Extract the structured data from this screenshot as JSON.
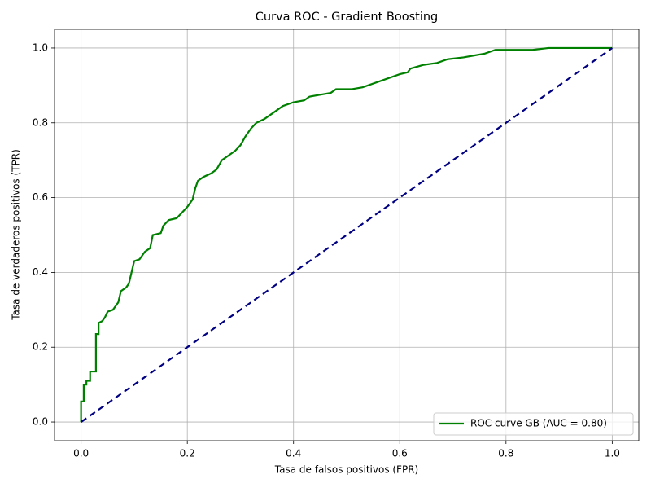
{
  "chart_data": {
    "type": "line",
    "title": "Curva ROC - Gradient Boosting",
    "x_label": "Tasa de falsos positivos (FPR)",
    "y_label": "Tasa de verdaderos positivos (TPR)",
    "xlim": [
      -0.05,
      1.05
    ],
    "ylim": [
      -0.05,
      1.05
    ],
    "xticks": [
      {
        "value": 0,
        "label": "0.0"
      },
      0.2,
      0.4,
      0.6,
      0.8,
      {
        "value": 1,
        "label": "1.0"
      }
    ],
    "yticks": [
      {
        "value": 0,
        "label": "0.0"
      },
      0.2,
      0.4,
      0.6,
      0.8,
      {
        "value": 1,
        "label": "1.0"
      }
    ],
    "grid": true,
    "legend": "lower right",
    "series": [
      {
        "name": "ROC curve GB (AUC = 0.80)",
        "color": "#008000",
        "x": [
          0,
          0,
          0.005,
          0.005,
          0.01,
          0.01,
          0.017,
          0.017,
          0.028,
          0.028,
          0.033,
          0.033,
          0.04,
          0.045,
          0.05,
          0.06,
          0.065,
          0.07,
          0.075,
          0.085,
          0.09,
          0.095,
          0.1,
          0.11,
          0.12,
          0.13,
          0.135,
          0.15,
          0.155,
          0.165,
          0.18,
          0.19,
          0.2,
          0.21,
          0.215,
          0.22,
          0.23,
          0.245,
          0.255,
          0.265,
          0.275,
          0.29,
          0.3,
          0.31,
          0.32,
          0.33,
          0.345,
          0.36,
          0.37,
          0.38,
          0.4,
          0.42,
          0.43,
          0.45,
          0.47,
          0.48,
          0.51,
          0.53,
          0.6,
          0.615,
          0.62,
          0.645,
          0.67,
          0.69,
          0.72,
          0.74,
          0.76,
          0.78,
          0.85,
          0.88,
          1
        ],
        "values": [
          0,
          0.055,
          0.055,
          0.1,
          0.1,
          0.11,
          0.11,
          0.135,
          0.135,
          0.235,
          0.235,
          0.265,
          0.27,
          0.28,
          0.295,
          0.3,
          0.31,
          0.32,
          0.35,
          0.36,
          0.37,
          0.4,
          0.43,
          0.435,
          0.455,
          0.465,
          0.5,
          0.505,
          0.525,
          0.54,
          0.545,
          0.56,
          0.575,
          0.595,
          0.625,
          0.645,
          0.655,
          0.665,
          0.675,
          0.7,
          0.71,
          0.725,
          0.74,
          0.765,
          0.785,
          0.8,
          0.81,
          0.825,
          0.835,
          0.845,
          0.855,
          0.86,
          0.87,
          0.875,
          0.88,
          0.89,
          0.89,
          0.895,
          0.93,
          0.935,
          0.945,
          0.955,
          0.96,
          0.97,
          0.975,
          0.98,
          0.985,
          0.995,
          0.995,
          1,
          1
        ]
      }
    ],
    "reference_line": {
      "color": "#000080",
      "dashed": true,
      "x": [
        0,
        1
      ],
      "values": [
        0,
        1
      ]
    }
  }
}
